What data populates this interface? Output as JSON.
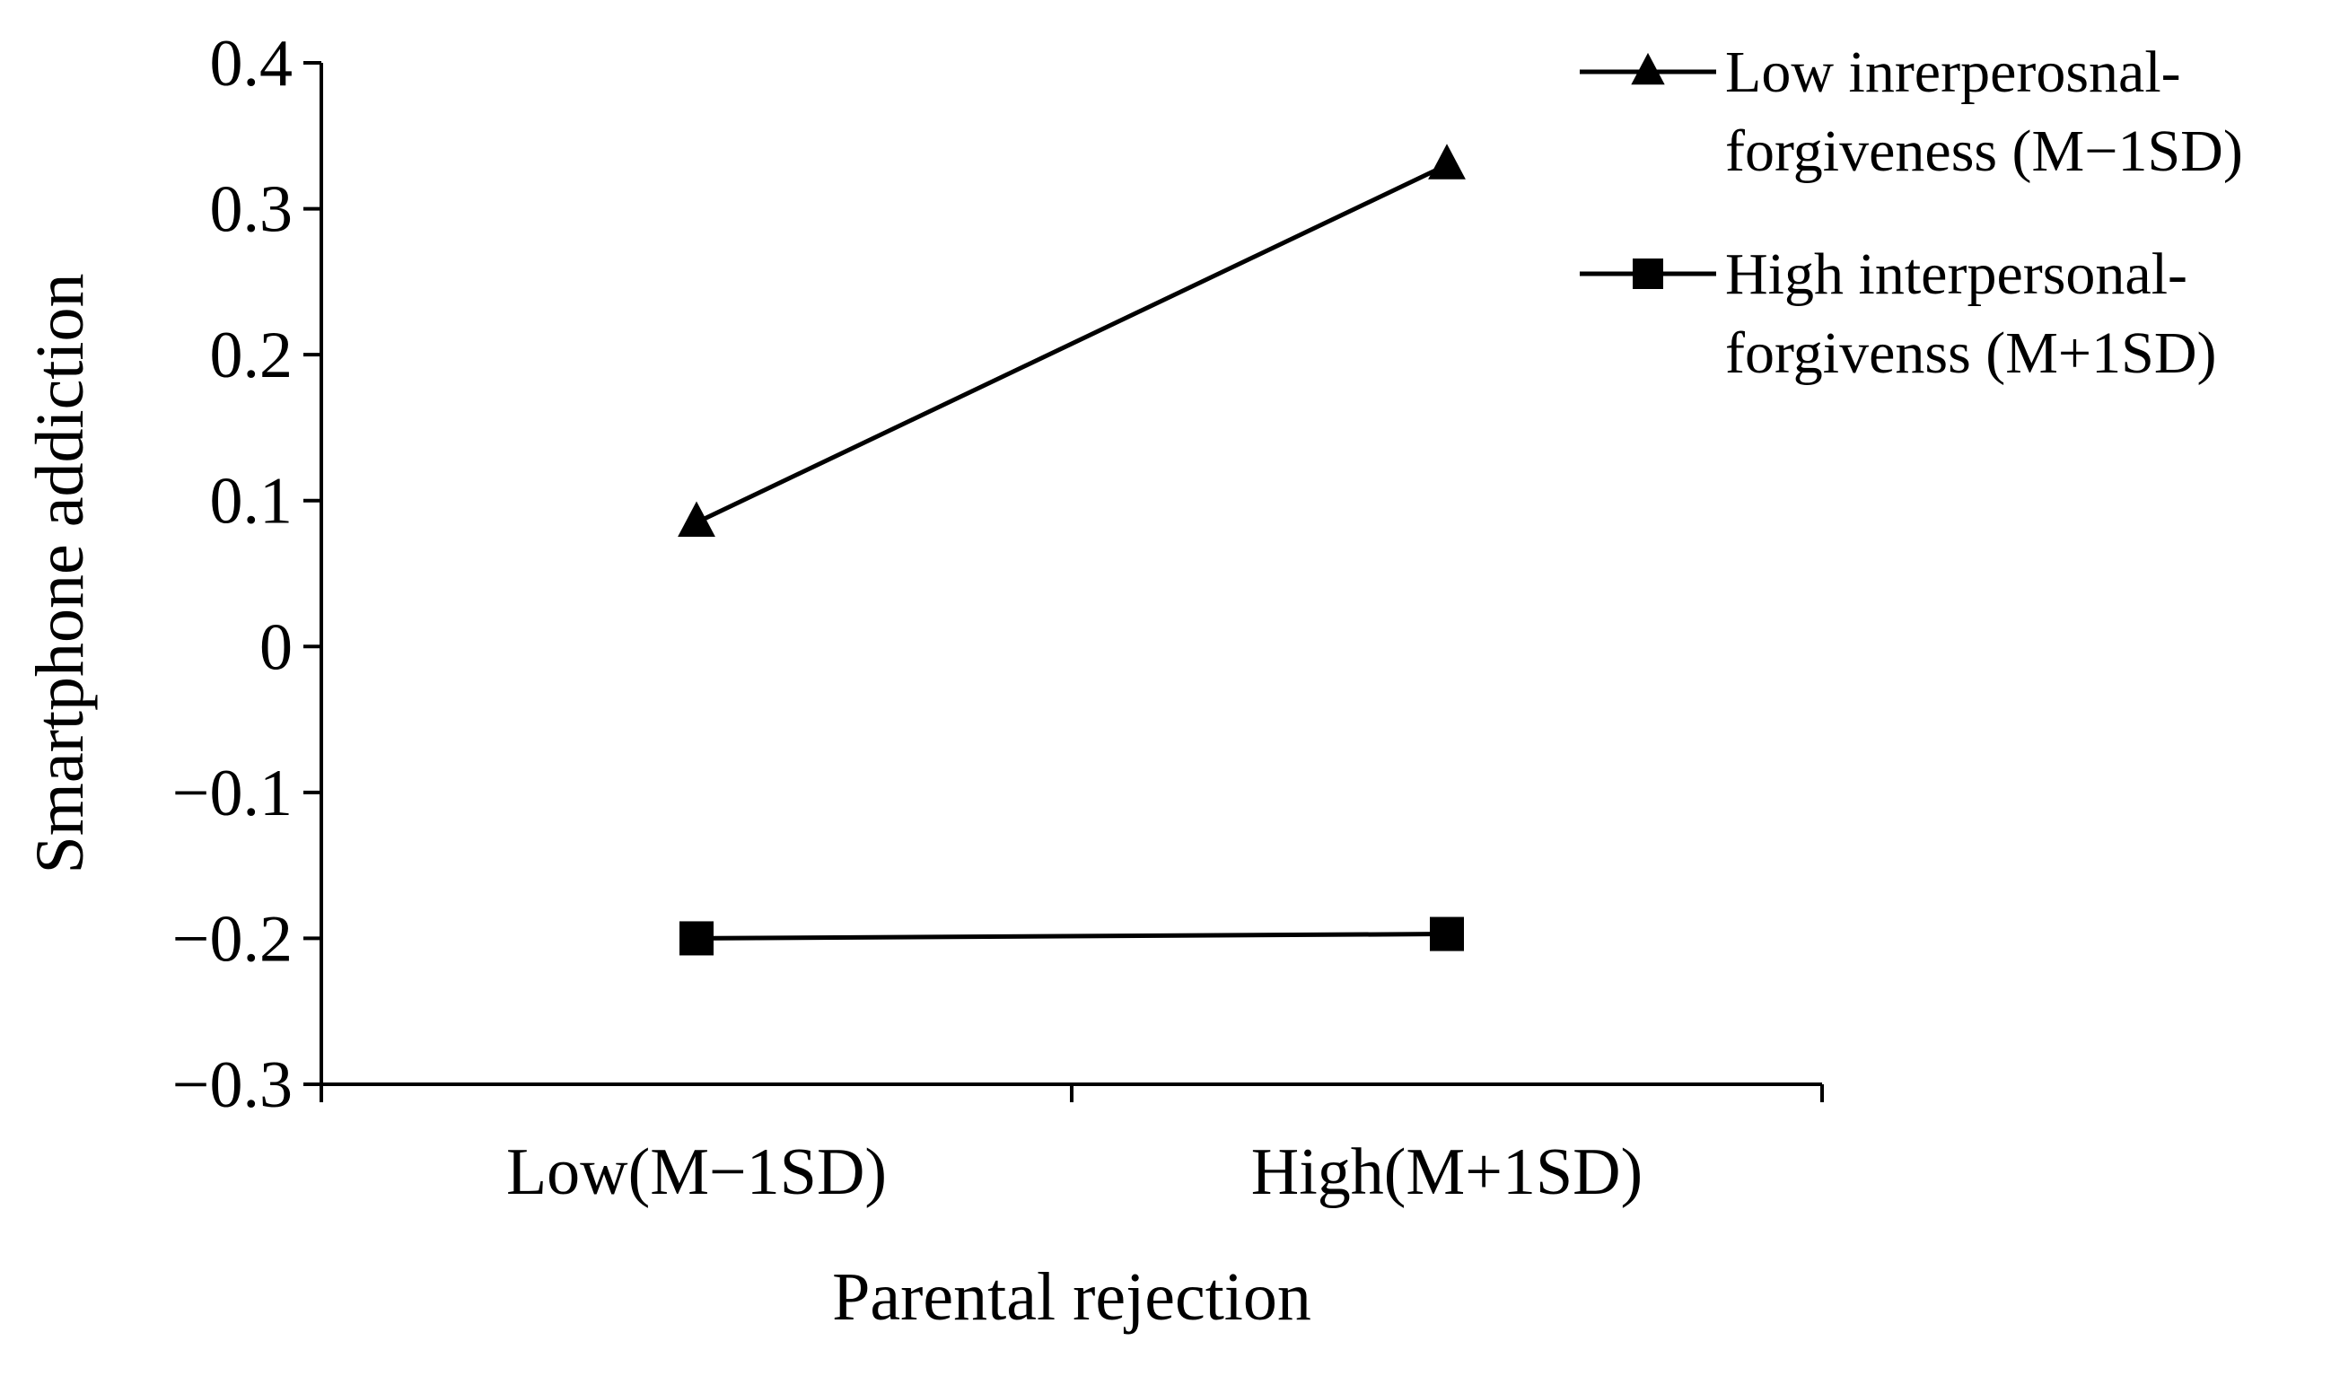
{
  "chart_data": {
    "type": "line",
    "title": "",
    "xlabel": "Parental rejection",
    "ylabel": "Smartphone addiction",
    "categories": [
      "Low(M−1SD)",
      "High(M+1SD)"
    ],
    "ylim": [
      -0.3,
      0.4
    ],
    "yticks": [
      "0.4",
      "0.3",
      "0.2",
      "0.1",
      "0",
      "−0.1",
      "−0.2",
      "−0.3"
    ],
    "grid": false,
    "legend_position": "top-right",
    "series": [
      {
        "name": "Low inrerperosnal-forgiveness (M−1SD)",
        "name_lines": [
          "Low inrerperosnal-",
          "forgiveness (M−1SD)"
        ],
        "marker": "triangle",
        "color": "#000000",
        "values": [
          0.085,
          0.33
        ]
      },
      {
        "name": "High interpersonal-forgivenss (M+1SD)",
        "name_lines": [
          "High interpersonal-",
          "forgivenss (M+1SD)"
        ],
        "marker": "square",
        "color": "#000000",
        "values": [
          -0.2,
          -0.197
        ]
      }
    ]
  }
}
